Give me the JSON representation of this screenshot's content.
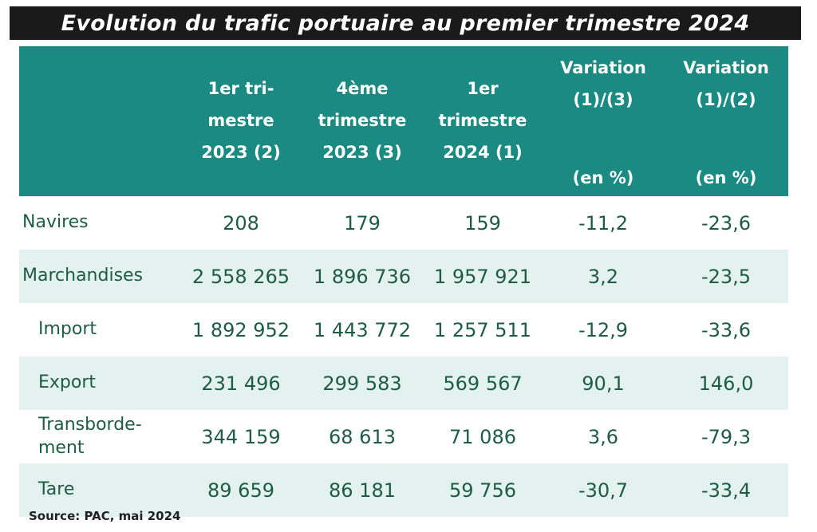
{
  "title": "Evolution du trafic portuaire au premier trimestre 2024",
  "colors": {
    "header_bg": "#1a8a82",
    "header_text": "#ffffff",
    "stripe_bg": "#e3f2ee",
    "body_text": "#1f5c44",
    "title_bg": "#1a1a1a"
  },
  "table": {
    "columns": [
      {
        "lines": [
          ""
        ]
      },
      {
        "lines": [
          "1er tri-",
          "mestre",
          "2023 (2)"
        ]
      },
      {
        "lines": [
          "4ème",
          "trimestre",
          "2023 (3)"
        ]
      },
      {
        "lines": [
          "1er",
          "trimestre",
          "2024 (1)"
        ]
      },
      {
        "lines": [
          "Variation",
          "(1)/(3)"
        ],
        "unit": "(en %)"
      },
      {
        "lines": [
          "Variation",
          "(1)/(2)"
        ],
        "unit": "(en %)"
      }
    ],
    "rows": [
      {
        "label_lines": [
          "Navires"
        ],
        "values": [
          "208",
          "179",
          "159",
          "-11,2",
          "-23,6"
        ]
      },
      {
        "label_lines": [
          "Marchandises"
        ],
        "values": [
          "2 558 265",
          "1 896 736",
          "1 957 921",
          "3,2",
          "-23,5"
        ]
      },
      {
        "label_lines": [
          "Import"
        ],
        "values": [
          "1 892 952",
          "1 443 772",
          "1 257 511",
          "-12,9",
          "-33,6"
        ]
      },
      {
        "label_lines": [
          "Export"
        ],
        "values": [
          "231 496",
          "299 583",
          "569 567",
          "90,1",
          "146,0"
        ]
      },
      {
        "label_lines": [
          "Transborde-",
          "ment"
        ],
        "values": [
          "344 159",
          "68 613",
          "71 086",
          "3,6",
          "-79,3"
        ]
      },
      {
        "label_lines": [
          "Tare"
        ],
        "values": [
          "89 659",
          "86 181",
          "59 756",
          "-30,7",
          "-33,4"
        ]
      }
    ]
  },
  "source": "Source: PAC, mai 2024"
}
